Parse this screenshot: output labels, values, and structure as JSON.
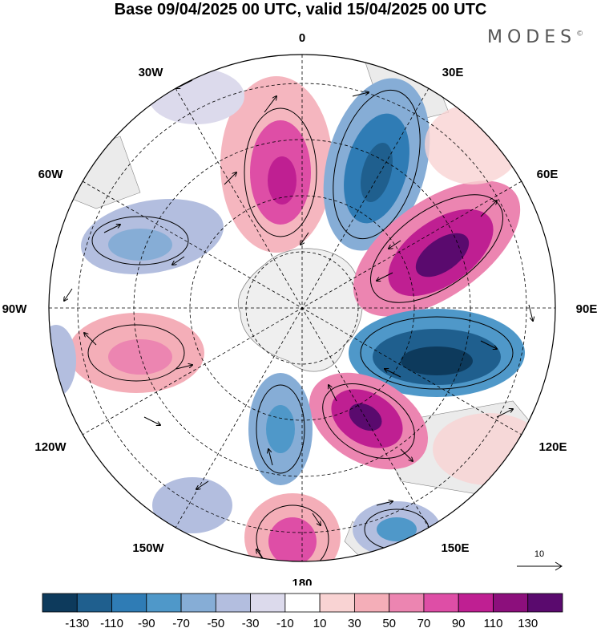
{
  "title": "Base 09/04/2025 00 UTC, valid 15/04/2025 00 UTC",
  "brand": {
    "name": "MODES",
    "mark": "©"
  },
  "longitude_labels": [
    "0",
    "30E",
    "60E",
    "90E",
    "120E",
    "150E",
    "180",
    "150W",
    "120W",
    "90W",
    "60W",
    "30W"
  ],
  "reference_vector": {
    "label": "10",
    "icon": "arrow-right-icon"
  },
  "colorbar": {
    "colors": [
      "#0d3a5c",
      "#1f5f8e",
      "#2f7cb5",
      "#4f98c9",
      "#86add6",
      "#b3bedf",
      "#dcdaec",
      "#ffffff",
      "#f9d3d3",
      "#f4aeb8",
      "#ec85b1",
      "#de4ea6",
      "#bf1f92",
      "#8c0f7c",
      "#5a0a6e"
    ],
    "tick_labels": [
      "-130",
      "-110",
      "-90",
      "-70",
      "-50",
      "-30",
      "-10",
      "10",
      "30",
      "50",
      "70",
      "90",
      "110",
      "130"
    ]
  },
  "anomaly_colors": {
    "positive_strong": "#8c0f7c",
    "positive_mid": "#de4ea6",
    "positive_weak": "#f4aeb8",
    "negative_strong": "#1f5f8e",
    "negative_mid": "#4f98c9",
    "negative_weak": "#b3bedf",
    "land": "#ebebeb",
    "antarctica": "#efefef"
  }
}
